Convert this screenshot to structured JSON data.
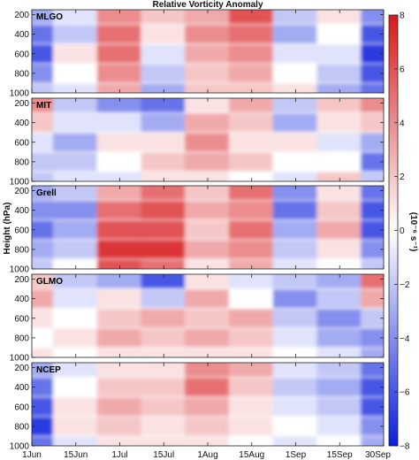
{
  "chart_data": {
    "type": "heatmap",
    "title": "Relative Vorticity Anomaly",
    "ylabel": "Height (hPa)",
    "colorbar_label": "(10⁻⁶ s⁻¹)",
    "colorbar": {
      "range": [
        -8,
        8
      ],
      "ticks": [
        8,
        6,
        4,
        2,
        0,
        -2,
        -4,
        -6,
        -8
      ],
      "colors": {
        "max": "#d7191c",
        "mid": "#ffffff",
        "min": "#0a1fdb"
      }
    },
    "y_axis": {
      "range": [
        1000,
        150
      ],
      "ticks": [
        200,
        400,
        600,
        800,
        1000
      ]
    },
    "x_axis": {
      "ticks": [
        "1Jun",
        "15Jun",
        "1Jul",
        "15Jul",
        "1Aug",
        "15Aug",
        "1Sep",
        "15Sep",
        "30Sep"
      ]
    },
    "levels": [
      200,
      400,
      600,
      800,
      1000
    ],
    "panels": [
      {
        "name": "MLGO",
        "columns": [
          {
            "x": "1Jun",
            "values": [
              -3,
              -5,
              -6,
              -4,
              -2
            ]
          },
          {
            "x": "15Jun",
            "values": [
              -1,
              -2,
              1,
              0,
              -1
            ]
          },
          {
            "x": "1Jul",
            "values": [
              4,
              5,
              5,
              4,
              3
            ]
          },
          {
            "x": "15Jul",
            "values": [
              2,
              1,
              -1,
              -2,
              -3
            ]
          },
          {
            "x": "1Aug",
            "values": [
              3,
              4,
              3,
              2,
              2
            ]
          },
          {
            "x": "15Aug",
            "values": [
              6,
              5,
              4,
              3,
              2
            ]
          },
          {
            "x": "1Sep",
            "values": [
              -2,
              -3,
              -1,
              0,
              1
            ]
          },
          {
            "x": "15Sep",
            "values": [
              1,
              0,
              -1,
              -2,
              -3
            ]
          },
          {
            "x": "30Sep",
            "values": [
              -4,
              -6,
              -7,
              -6,
              -5
            ]
          }
        ]
      },
      {
        "name": "MIT",
        "columns": [
          {
            "x": "1Jun",
            "values": [
              4,
              2,
              -1,
              -2,
              -2
            ]
          },
          {
            "x": "15Jun",
            "values": [
              -2,
              -1,
              -3,
              -2,
              -1
            ]
          },
          {
            "x": "1Jul",
            "values": [
              -4,
              -1,
              1,
              0,
              -1
            ]
          },
          {
            "x": "15Jul",
            "values": [
              -5,
              -3,
              1,
              2,
              1
            ]
          },
          {
            "x": "1Aug",
            "values": [
              1,
              3,
              4,
              3,
              1
            ]
          },
          {
            "x": "15Aug",
            "values": [
              3,
              2,
              1,
              2,
              0
            ]
          },
          {
            "x": "1Sep",
            "values": [
              -2,
              -3,
              1,
              0,
              -1
            ]
          },
          {
            "x": "15Sep",
            "values": [
              2,
              1,
              -1,
              0,
              2
            ]
          },
          {
            "x": "30Sep",
            "values": [
              4,
              2,
              -3,
              -5,
              -2
            ]
          }
        ]
      },
      {
        "name": "Grell",
        "columns": [
          {
            "x": "1Jun",
            "values": [
              -3,
              -4,
              -5,
              -3,
              -2
            ]
          },
          {
            "x": "15Jun",
            "values": [
              -2,
              -4,
              -3,
              -2,
              0
            ]
          },
          {
            "x": "1Jul",
            "values": [
              3,
              5,
              6,
              7,
              6
            ]
          },
          {
            "x": "15Jul",
            "values": [
              5,
              6,
              6,
              7,
              5
            ]
          },
          {
            "x": "1Aug",
            "values": [
              2,
              3,
              2,
              3,
              1
            ]
          },
          {
            "x": "15Aug",
            "values": [
              5,
              4,
              5,
              4,
              3
            ]
          },
          {
            "x": "1Sep",
            "values": [
              -4,
              -5,
              -3,
              -2,
              -1
            ]
          },
          {
            "x": "15Sep",
            "values": [
              1,
              2,
              3,
              1,
              0
            ]
          },
          {
            "x": "30Sep",
            "values": [
              -5,
              -6,
              -6,
              -4,
              -2
            ]
          }
        ]
      },
      {
        "name": "GLMO",
        "columns": [
          {
            "x": "1Jun",
            "values": [
              2,
              3,
              1,
              0,
              1
            ]
          },
          {
            "x": "15Jun",
            "values": [
              -2,
              -1,
              0,
              1,
              0
            ]
          },
          {
            "x": "1Jul",
            "values": [
              -3,
              1,
              2,
              3,
              1
            ]
          },
          {
            "x": "15Jul",
            "values": [
              -6,
              -2,
              3,
              2,
              1
            ]
          },
          {
            "x": "1Aug",
            "values": [
              1,
              3,
              2,
              3,
              1
            ]
          },
          {
            "x": "15Aug",
            "values": [
              -1,
              0,
              3,
              2,
              1
            ]
          },
          {
            "x": "1Sep",
            "values": [
              -2,
              -4,
              -2,
              -1,
              0
            ]
          },
          {
            "x": "15Sep",
            "values": [
              -3,
              -2,
              -4,
              -3,
              -1
            ]
          },
          {
            "x": "30Sep",
            "values": [
              5,
              3,
              -2,
              -4,
              -3
            ]
          }
        ]
      },
      {
        "name": "NCEP",
        "columns": [
          {
            "x": "1Jun",
            "values": [
              -3,
              -5,
              -6,
              -7,
              -5
            ]
          },
          {
            "x": "15Jun",
            "values": [
              -1,
              0,
              1,
              1,
              -1
            ]
          },
          {
            "x": "1Jul",
            "values": [
              1,
              2,
              3,
              2,
              1
            ]
          },
          {
            "x": "15Jul",
            "values": [
              1,
              2,
              2,
              1,
              1
            ]
          },
          {
            "x": "1Aug",
            "values": [
              4,
              5,
              3,
              2,
              1
            ]
          },
          {
            "x": "15Aug",
            "values": [
              3,
              2,
              1,
              1,
              0
            ]
          },
          {
            "x": "1Sep",
            "values": [
              -1,
              -2,
              -1,
              0,
              -1
            ]
          },
          {
            "x": "15Sep",
            "values": [
              -2,
              -3,
              -2,
              -1,
              0
            ]
          },
          {
            "x": "30Sep",
            "values": [
              -5,
              -6,
              -6,
              -4,
              -3
            ]
          }
        ]
      }
    ]
  }
}
